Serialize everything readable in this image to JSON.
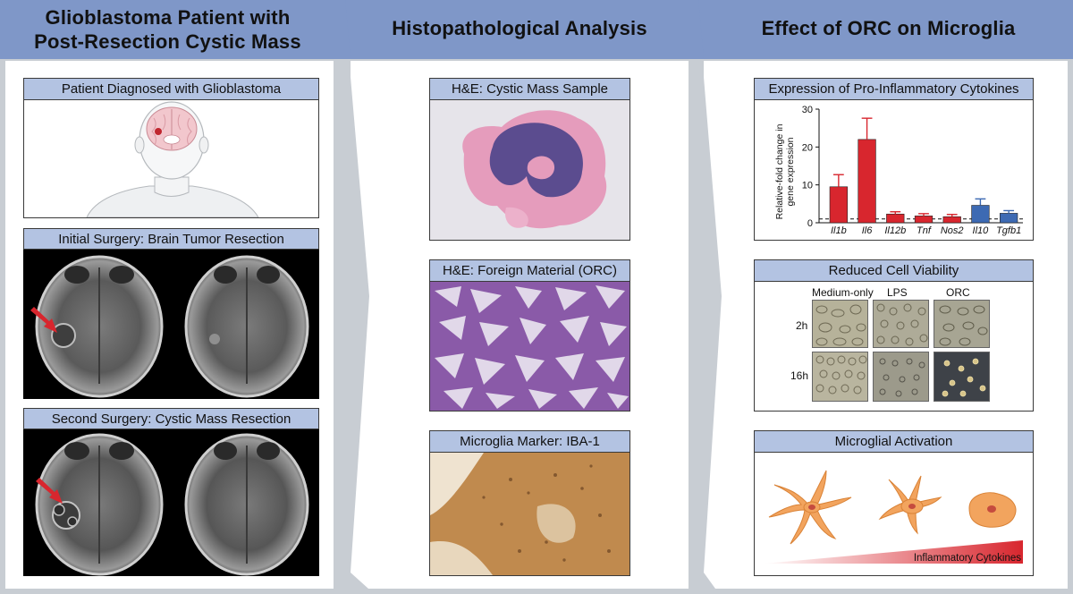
{
  "columns": {
    "left_title_line1": "Glioblastoma Patient with",
    "left_title_line2": "Post-Resection Cystic Mass",
    "middle_title": "Histopathological Analysis",
    "right_title": "Effect of ORC on Microglia"
  },
  "left_panels": {
    "diagnosis": "Patient Diagnosed with Glioblastoma",
    "initial_surgery": "Initial Surgery: Brain Tumor Resection",
    "second_surgery": "Second Surgery: Cystic Mass Resection"
  },
  "middle_panels": {
    "he_cystic": "H&E: Cystic Mass Sample",
    "he_foreign": "H&E: Foreign Material (ORC)",
    "iba1": "Microglia Marker: IBA-1"
  },
  "right_panels": {
    "cytokines": "Expression of Pro-Inflammatory Cytokines",
    "viability": "Reduced Cell Viability",
    "activation": "Microglial Activation"
  },
  "viability": {
    "columns": [
      "Medium-only",
      "LPS",
      "ORC"
    ],
    "rows": [
      "2h",
      "16h"
    ]
  },
  "activation": {
    "gradient_label": "Inflammatory Cytokines"
  },
  "colors": {
    "header_fill": "#b3c3e2",
    "chevron_fill": "#c8cdd3",
    "arrow_red": "#d8262e",
    "bar_red": "#d8262e",
    "bar_blue": "#3d6ab3",
    "cell_orange": "#f2a45e"
  },
  "chart_data": {
    "type": "bar",
    "ylabel_line1": "Relative-fold change in",
    "ylabel_line2": "gene expression",
    "categories": [
      "Il1b",
      "Il6",
      "Il12b",
      "Tnf",
      "Nos2",
      "Il10",
      "Tgfb1"
    ],
    "values": [
      9.5,
      22.0,
      2.3,
      1.8,
      1.6,
      4.6,
      2.5
    ],
    "errors": [
      3.2,
      5.6,
      0.6,
      0.6,
      0.6,
      1.7,
      0.7
    ],
    "bar_colors": [
      "#d8262e",
      "#d8262e",
      "#d8262e",
      "#d8262e",
      "#d8262e",
      "#3d6ab3",
      "#3d6ab3"
    ],
    "ylim": [
      0,
      30
    ],
    "yticks": [
      0,
      10,
      20,
      30
    ],
    "baseline": 1,
    "grid": false
  }
}
